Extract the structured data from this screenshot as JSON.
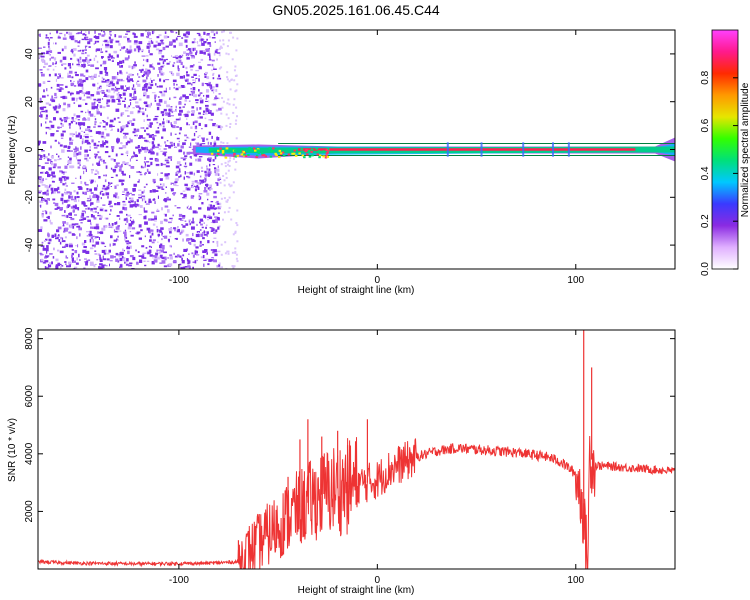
{
  "title": "GN05.2025.161.06.45.C44",
  "chart_data": [
    {
      "type": "heatmap",
      "xlabel": "Height of straight line (km)",
      "ylabel": "Frequency (Hz)",
      "xlim": [
        -171,
        150
      ],
      "ylim": [
        -50,
        50
      ],
      "x_ticks": [
        "-100",
        "0",
        "100"
      ],
      "y_ticks": [
        "-40",
        "-20",
        "0",
        "20",
        "40"
      ],
      "colorbar": {
        "label": "Normalized spectral amplitude",
        "range": [
          0,
          1
        ],
        "ticks": [
          "0.0",
          "0.2",
          "0.4",
          "0.6",
          "0.8"
        ],
        "colors": [
          "#ffffff",
          "#e0b0ff",
          "#8a2be2",
          "#3a3aff",
          "#00c8ff",
          "#00e07a",
          "#33ff00",
          "#e6e600",
          "#ff9900",
          "#ff2a00",
          "#ff1a8c",
          "#ff40ff"
        ]
      },
      "features": {
        "noise_region_x": [
          -171,
          -80
        ],
        "noise_color": "#7b2fe6",
        "signal_band_y": [
          -1,
          1
        ],
        "signal_start_x": -93,
        "signal_color": "#ff2050",
        "envelope_color": "#00d080"
      }
    },
    {
      "type": "line",
      "xlabel": "Height of straight line (km)",
      "ylabel": "SNR (10 * v/v)",
      "xlim": [
        -171,
        150
      ],
      "ylim": [
        0,
        8300
      ],
      "x_ticks": [
        "-100",
        "0",
        "100"
      ],
      "y_ticks": [
        "2000",
        "4000",
        "6000",
        "8000"
      ],
      "series": [
        {
          "color": "#ee3333",
          "x": [
            -171,
            -150,
            -120,
            -100,
            -85,
            -70,
            -65,
            -60,
            -55,
            -50,
            -45,
            -40,
            -35,
            -30,
            -25,
            -20,
            -15,
            -10,
            -5,
            0,
            5,
            10,
            20,
            30,
            40,
            50,
            60,
            70,
            80,
            85,
            90,
            95,
            100,
            103,
            105,
            106,
            107,
            108,
            110,
            120,
            130,
            140,
            150
          ],
          "y": [
            250,
            200,
            180,
            190,
            200,
            250,
            600,
            900,
            1200,
            1500,
            1800,
            2100,
            2300,
            2500,
            2700,
            2800,
            2850,
            2950,
            3000,
            3100,
            3400,
            3600,
            3900,
            4100,
            4200,
            4150,
            4100,
            4050,
            3950,
            3900,
            3800,
            3600,
            3300,
            2500,
            900,
            300,
            4000,
            3800,
            3600,
            3550,
            3500,
            3450,
            3400
          ]
        }
      ],
      "spikes": [
        {
          "x": -70,
          "y": 1000
        },
        {
          "x": -45,
          "y": 3200
        },
        {
          "x": -39,
          "y": 4500
        },
        {
          "x": -35,
          "y": 5200
        },
        {
          "x": -28,
          "y": 4600
        },
        {
          "x": -20,
          "y": 4800
        },
        {
          "x": -15,
          "y": 4300
        },
        {
          "x": -5,
          "y": 5200
        },
        {
          "x": 104,
          "y": 8300
        },
        {
          "x": 108,
          "y": 7000
        }
      ]
    }
  ]
}
